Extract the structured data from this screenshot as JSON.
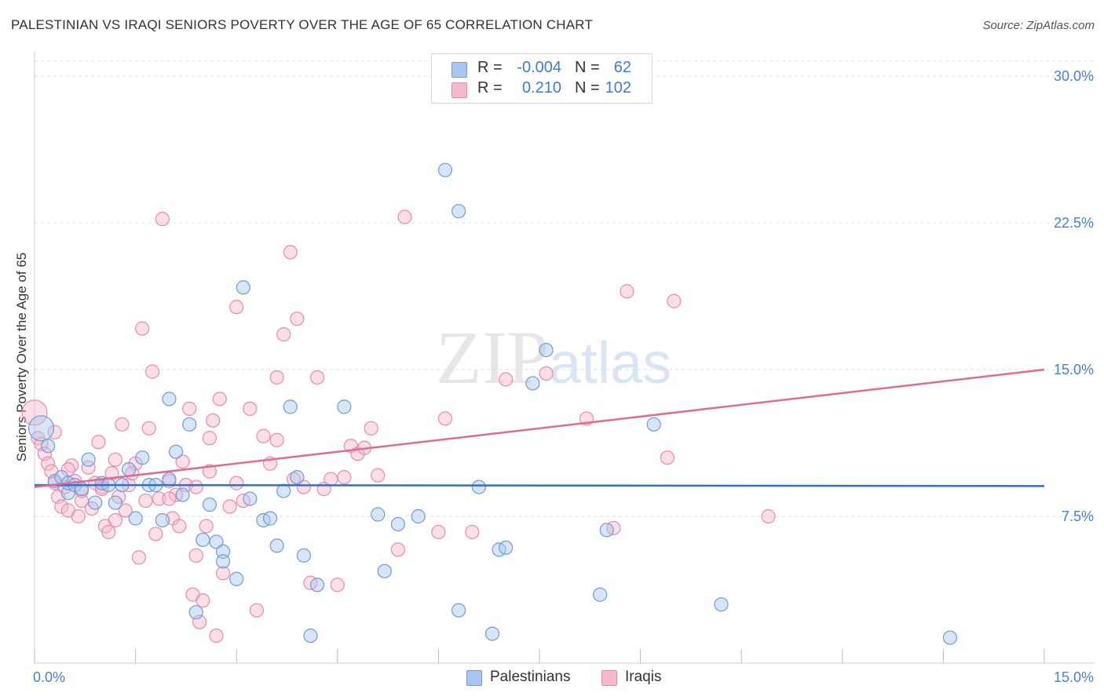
{
  "header": {
    "title": "PALESTINIAN VS IRAQI SENIORS POVERTY OVER THE AGE OF 65 CORRELATION CHART",
    "source": "Source: ZipAtlas.com"
  },
  "watermark": {
    "zip": "ZIP",
    "atlas": "atlas"
  },
  "legend": {
    "rows": [
      {
        "r_label": "R =",
        "r_value": "-0.004",
        "n_label": "N =",
        "n_value": "62"
      },
      {
        "r_label": "R =",
        "r_value": "0.210",
        "n_label": "N =",
        "n_value": "102"
      }
    ]
  },
  "bottom_legend": {
    "palestinians": "Palestinians",
    "iraqis": "Iraqis"
  },
  "colors": {
    "blue_fill": "#a9c6ee",
    "blue_stroke": "#6f9bd8",
    "blue_line": "#2f6fcf",
    "pink_fill": "#f6b9cb",
    "pink_stroke": "#e98aa8",
    "pink_line": "#e06a93",
    "grid": "#dddddd",
    "tick_text": "#4a7fd0"
  },
  "chart_data": {
    "type": "scatter",
    "title": "PALESTINIAN VS IRAQI SENIORS POVERTY OVER THE AGE OF 65 CORRELATION CHART",
    "xlabel": "",
    "ylabel": "Seniors Poverty Over the Age of 65",
    "xlim": [
      0,
      15
    ],
    "ylim": [
      0,
      30
    ],
    "x_tick_labels": [
      "0.0%",
      "15.0%"
    ],
    "y_ticks": [
      7.5,
      15.0,
      22.5,
      30.0
    ],
    "y_tick_labels": [
      "7.5%",
      "15.0%",
      "22.5%",
      "30.0%"
    ],
    "grid": true,
    "series": [
      {
        "name": "Palestinians",
        "r": -0.004,
        "n": 62,
        "trend": {
          "x": [
            0,
            15
          ],
          "y": [
            9.1,
            9.05
          ]
        },
        "points": [
          [
            0.1,
            12.0
          ],
          [
            0.2,
            11.1
          ],
          [
            0.3,
            9.3
          ],
          [
            0.4,
            9.5
          ],
          [
            0.5,
            8.7
          ],
          [
            0.5,
            9.2
          ],
          [
            0.6,
            9.1
          ],
          [
            0.7,
            8.9
          ],
          [
            0.8,
            10.4
          ],
          [
            0.9,
            8.2
          ],
          [
            1.0,
            9.2
          ],
          [
            1.1,
            9.1
          ],
          [
            1.2,
            8.2
          ],
          [
            1.3,
            9.1
          ],
          [
            1.4,
            9.9
          ],
          [
            1.5,
            7.4
          ],
          [
            1.6,
            10.5
          ],
          [
            1.7,
            9.1
          ],
          [
            1.8,
            9.1
          ],
          [
            1.9,
            7.3
          ],
          [
            2.0,
            9.4
          ],
          [
            2.0,
            13.5
          ],
          [
            2.1,
            10.8
          ],
          [
            2.2,
            8.6
          ],
          [
            2.3,
            12.2
          ],
          [
            2.4,
            2.6
          ],
          [
            2.5,
            6.3
          ],
          [
            2.6,
            8.1
          ],
          [
            2.7,
            6.2
          ],
          [
            2.8,
            5.7
          ],
          [
            2.8,
            5.2
          ],
          [
            3.0,
            4.3
          ],
          [
            3.1,
            19.2
          ],
          [
            3.2,
            8.4
          ],
          [
            3.4,
            7.3
          ],
          [
            3.5,
            7.4
          ],
          [
            3.6,
            6.0
          ],
          [
            3.7,
            8.8
          ],
          [
            3.8,
            13.1
          ],
          [
            3.9,
            9.5
          ],
          [
            4.0,
            5.5
          ],
          [
            4.2,
            4.0
          ],
          [
            4.1,
            1.4
          ],
          [
            4.6,
            13.1
          ],
          [
            5.1,
            7.6
          ],
          [
            5.2,
            4.7
          ],
          [
            5.4,
            7.1
          ],
          [
            5.7,
            7.5
          ],
          [
            6.1,
            25.2
          ],
          [
            6.3,
            23.1
          ],
          [
            6.3,
            2.7
          ],
          [
            6.6,
            9.0
          ],
          [
            6.8,
            1.5
          ],
          [
            6.9,
            5.8
          ],
          [
            7.0,
            5.9
          ],
          [
            7.4,
            14.3
          ],
          [
            7.6,
            16.0
          ],
          [
            8.4,
            3.5
          ],
          [
            8.5,
            6.8
          ],
          [
            9.2,
            12.2
          ],
          [
            10.2,
            3.0
          ],
          [
            13.6,
            1.3
          ]
        ]
      },
      {
        "name": "Iraqis",
        "r": 0.21,
        "n": 102,
        "trend": {
          "x": [
            0,
            15
          ],
          "y": [
            9.0,
            15.0
          ]
        },
        "points": [
          [
            0.0,
            12.8
          ],
          [
            0.05,
            11.5
          ],
          [
            0.1,
            11.2
          ],
          [
            0.15,
            10.7
          ],
          [
            0.2,
            10.2
          ],
          [
            0.25,
            9.8
          ],
          [
            0.3,
            9.2
          ],
          [
            0.35,
            8.5
          ],
          [
            0.4,
            8.0
          ],
          [
            0.45,
            9.0
          ],
          [
            0.5,
            7.8
          ],
          [
            0.55,
            10.1
          ],
          [
            0.6,
            9.3
          ],
          [
            0.65,
            7.5
          ],
          [
            0.7,
            8.3
          ],
          [
            0.8,
            10.0
          ],
          [
            0.85,
            7.9
          ],
          [
            0.9,
            9.2
          ],
          [
            0.95,
            11.3
          ],
          [
            1.0,
            9.0
          ],
          [
            1.05,
            7.0
          ],
          [
            1.1,
            6.7
          ],
          [
            1.15,
            9.7
          ],
          [
            1.2,
            7.3
          ],
          [
            1.25,
            8.5
          ],
          [
            1.3,
            12.2
          ],
          [
            1.35,
            7.8
          ],
          [
            1.4,
            9.1
          ],
          [
            1.5,
            10.2
          ],
          [
            1.55,
            5.4
          ],
          [
            1.6,
            17.1
          ],
          [
            1.65,
            8.3
          ],
          [
            1.7,
            12.0
          ],
          [
            1.8,
            6.6
          ],
          [
            1.85,
            8.4
          ],
          [
            1.9,
            22.7
          ],
          [
            2.0,
            9.3
          ],
          [
            2.05,
            7.4
          ],
          [
            2.1,
            8.6
          ],
          [
            2.15,
            7.0
          ],
          [
            2.2,
            10.3
          ],
          [
            2.25,
            9.1
          ],
          [
            2.3,
            13.0
          ],
          [
            2.35,
            3.5
          ],
          [
            2.4,
            5.5
          ],
          [
            2.45,
            2.1
          ],
          [
            2.5,
            3.2
          ],
          [
            2.55,
            7.0
          ],
          [
            2.6,
            11.5
          ],
          [
            2.65,
            12.4
          ],
          [
            2.7,
            1.4
          ],
          [
            2.75,
            13.5
          ],
          [
            2.8,
            4.6
          ],
          [
            2.9,
            8.0
          ],
          [
            3.0,
            18.2
          ],
          [
            3.1,
            8.3
          ],
          [
            3.2,
            13.0
          ],
          [
            3.3,
            2.7
          ],
          [
            3.4,
            11.6
          ],
          [
            3.5,
            10.2
          ],
          [
            3.6,
            11.4
          ],
          [
            3.7,
            16.8
          ],
          [
            3.8,
            21.0
          ],
          [
            3.85,
            9.4
          ],
          [
            3.9,
            17.6
          ],
          [
            4.0,
            9.0
          ],
          [
            4.1,
            4.1
          ],
          [
            4.2,
            14.6
          ],
          [
            4.3,
            8.9
          ],
          [
            4.5,
            4.0
          ],
          [
            4.6,
            9.5
          ],
          [
            4.7,
            11.1
          ],
          [
            4.8,
            10.7
          ],
          [
            4.9,
            11.0
          ],
          [
            5.0,
            12.0
          ],
          [
            5.1,
            9.6
          ],
          [
            5.4,
            5.8
          ],
          [
            5.5,
            22.8
          ],
          [
            6.0,
            6.7
          ],
          [
            6.1,
            12.5
          ],
          [
            7.0,
            14.5
          ],
          [
            7.6,
            14.8
          ],
          [
            8.2,
            12.5
          ],
          [
            8.6,
            6.9
          ],
          [
            8.8,
            19.0
          ],
          [
            9.4,
            10.5
          ],
          [
            9.5,
            18.5
          ],
          [
            10.9,
            7.5
          ],
          [
            0.3,
            11.8
          ],
          [
            0.5,
            9.9
          ],
          [
            0.7,
            8.8
          ],
          [
            1.0,
            8.9
          ],
          [
            1.2,
            10.4
          ],
          [
            1.45,
            9.7
          ],
          [
            1.75,
            14.9
          ],
          [
            2.0,
            8.4
          ],
          [
            2.4,
            9.0
          ],
          [
            2.6,
            9.8
          ],
          [
            3.0,
            9.2
          ],
          [
            3.6,
            14.6
          ],
          [
            4.4,
            9.4
          ],
          [
            6.5,
            6.7
          ]
        ]
      }
    ]
  }
}
